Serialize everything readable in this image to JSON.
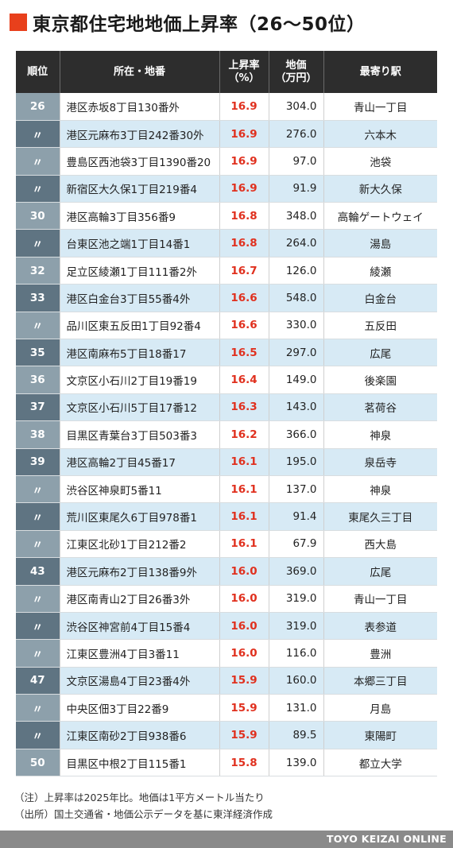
{
  "title": "東京都住宅地地価上昇率（26〜50位）",
  "colors": {
    "accent": "#e8401c",
    "header_bg": "#2d2d2d",
    "rate_text": "#e0301e",
    "row_alt": "#d7eaf5",
    "rank_odd": "#8da0ab",
    "rank_even": "#5f7482"
  },
  "table": {
    "headers": {
      "rank": "順位",
      "address": "所在・地番",
      "rate_line1": "上昇率",
      "rate_line2": "（%）",
      "price_line1": "地価",
      "price_line2": "（万円）",
      "station": "最寄り駅"
    },
    "rows": [
      {
        "rank": "26",
        "address": "港区赤坂8丁目130番外",
        "rate": "16.9",
        "price": "304.0",
        "station": "青山一丁目"
      },
      {
        "rank": "〃",
        "address": "港区元麻布3丁目242番30外",
        "rate": "16.9",
        "price": "276.0",
        "station": "六本木"
      },
      {
        "rank": "〃",
        "address": "豊島区西池袋3丁目1390番20",
        "rate": "16.9",
        "price": "97.0",
        "station": "池袋"
      },
      {
        "rank": "〃",
        "address": "新宿区大久保1丁目219番4",
        "rate": "16.9",
        "price": "91.9",
        "station": "新大久保"
      },
      {
        "rank": "30",
        "address": "港区高輪3丁目356番9",
        "rate": "16.8",
        "price": "348.0",
        "station": "高輪ゲートウェイ"
      },
      {
        "rank": "〃",
        "address": "台東区池之端1丁目14番1",
        "rate": "16.8",
        "price": "264.0",
        "station": "湯島"
      },
      {
        "rank": "32",
        "address": "足立区綾瀬1丁目111番2外",
        "rate": "16.7",
        "price": "126.0",
        "station": "綾瀬"
      },
      {
        "rank": "33",
        "address": "港区白金台3丁目55番4外",
        "rate": "16.6",
        "price": "548.0",
        "station": "白金台"
      },
      {
        "rank": "〃",
        "address": "品川区東五反田1丁目92番4",
        "rate": "16.6",
        "price": "330.0",
        "station": "五反田"
      },
      {
        "rank": "35",
        "address": "港区南麻布5丁目18番17",
        "rate": "16.5",
        "price": "297.0",
        "station": "広尾"
      },
      {
        "rank": "36",
        "address": "文京区小石川2丁目19番19",
        "rate": "16.4",
        "price": "149.0",
        "station": "後楽園"
      },
      {
        "rank": "37",
        "address": "文京区小石川5丁目17番12",
        "rate": "16.3",
        "price": "143.0",
        "station": "茗荷谷"
      },
      {
        "rank": "38",
        "address": "目黒区青葉台3丁目503番3",
        "rate": "16.2",
        "price": "366.0",
        "station": "神泉"
      },
      {
        "rank": "39",
        "address": "港区高輪2丁目45番17",
        "rate": "16.1",
        "price": "195.0",
        "station": "泉岳寺"
      },
      {
        "rank": "〃",
        "address": "渋谷区神泉町5番11",
        "rate": "16.1",
        "price": "137.0",
        "station": "神泉"
      },
      {
        "rank": "〃",
        "address": "荒川区東尾久6丁目978番1",
        "rate": "16.1",
        "price": "91.4",
        "station": "東尾久三丁目"
      },
      {
        "rank": "〃",
        "address": "江東区北砂1丁目212番2",
        "rate": "16.1",
        "price": "67.9",
        "station": "西大島"
      },
      {
        "rank": "43",
        "address": "港区元麻布2丁目138番9外",
        "rate": "16.0",
        "price": "369.0",
        "station": "広尾"
      },
      {
        "rank": "〃",
        "address": "港区南青山2丁目26番3外",
        "rate": "16.0",
        "price": "319.0",
        "station": "青山一丁目"
      },
      {
        "rank": "〃",
        "address": "渋谷区神宮前4丁目15番4",
        "rate": "16.0",
        "price": "319.0",
        "station": "表参道"
      },
      {
        "rank": "〃",
        "address": "江東区豊洲4丁目3番11",
        "rate": "16.0",
        "price": "116.0",
        "station": "豊洲"
      },
      {
        "rank": "47",
        "address": "文京区湯島4丁目23番4外",
        "rate": "15.9",
        "price": "160.0",
        "station": "本郷三丁目"
      },
      {
        "rank": "〃",
        "address": "中央区佃3丁目22番9",
        "rate": "15.9",
        "price": "131.0",
        "station": "月島"
      },
      {
        "rank": "〃",
        "address": "江東区南砂2丁目938番6",
        "rate": "15.9",
        "price": "89.5",
        "station": "東陽町"
      },
      {
        "rank": "50",
        "address": "目黒区中根2丁目115番1",
        "rate": "15.8",
        "price": "139.0",
        "station": "都立大学"
      }
    ]
  },
  "notes": {
    "note": "（注）上昇率は2025年比。地価は1平方メートル当たり",
    "source": "（出所）国土交通省・地価公示データを基に東洋経済作成"
  },
  "footer": {
    "brand": "TOYO KEIZAI ONLINE"
  }
}
